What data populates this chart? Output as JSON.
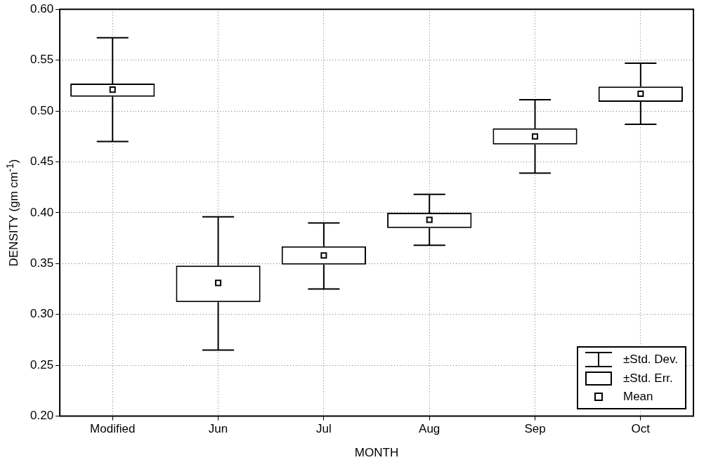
{
  "chart_data": {
    "type": "box",
    "xlabel": "MONTH",
    "ylabel": "DENSITY (gm cm$^{-1}$)",
    "categories": [
      "Modified",
      "Jun",
      "Jul",
      "Aug",
      "Sep",
      "Oct"
    ],
    "boxes": [
      {
        "low": 0.47,
        "q1": 0.514,
        "q3": 0.527,
        "high": 0.572,
        "mean": 0.521
      },
      {
        "low": 0.265,
        "q1": 0.312,
        "q3": 0.348,
        "high": 0.396,
        "mean": 0.331
      },
      {
        "low": 0.325,
        "q1": 0.349,
        "q3": 0.367,
        "high": 0.39,
        "mean": 0.358
      },
      {
        "low": 0.368,
        "q1": 0.385,
        "q3": 0.4,
        "high": 0.418,
        "mean": 0.393
      },
      {
        "low": 0.439,
        "q1": 0.467,
        "q3": 0.483,
        "high": 0.511,
        "mean": 0.475
      },
      {
        "low": 0.487,
        "q1": 0.509,
        "q3": 0.524,
        "high": 0.547,
        "mean": 0.517
      }
    ],
    "color": "#000000",
    "ylim": [
      0.2,
      0.6
    ],
    "yticks": [
      {
        "value": 0.2,
        "label": "0.20"
      },
      {
        "value": 0.25,
        "label": "0.25"
      },
      {
        "value": 0.3,
        "label": "0.30"
      },
      {
        "value": 0.35,
        "label": "0.35"
      },
      {
        "value": 0.4,
        "label": "0.40"
      },
      {
        "value": 0.45,
        "label": "0.45"
      },
      {
        "value": 0.5,
        "label": "0.50"
      },
      {
        "value": 0.55,
        "label": "0.55"
      },
      {
        "value": 0.6,
        "label": "0.60"
      }
    ],
    "grid": true,
    "marker": "square",
    "annotations": [
      "±Std. Dev.",
      "±Std. Err.",
      "Mean"
    ]
  }
}
